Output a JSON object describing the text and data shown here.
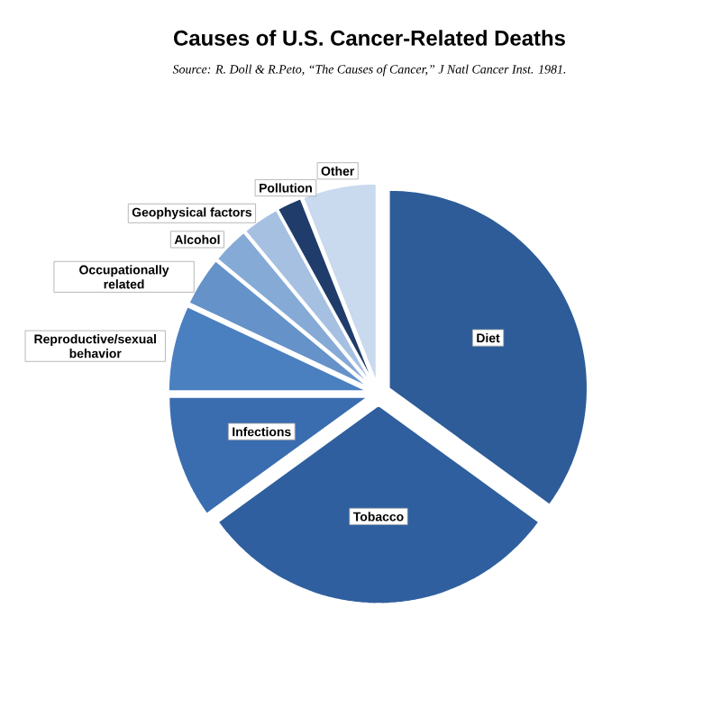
{
  "chart_data": {
    "type": "pie",
    "title": "Causes of U.S. Cancer-Related Deaths",
    "annotations": [
      "Source: R. Doll & R.Peto, “The Causes of Cancer,” J Natl Cancer Inst. 1981."
    ],
    "categories": [
      "Diet",
      "Tobacco",
      "Infections",
      "Reproductive/sexual behavior",
      "Occupationally related",
      "Alcohol",
      "Geophysical factors",
      "Pollution",
      "Other"
    ],
    "values": [
      35,
      30,
      10,
      7,
      4,
      3,
      3,
      2,
      6
    ],
    "colors": [
      "#2d5c98",
      "#2f5f9e",
      "#3a6db0",
      "#4a7fc0",
      "#6592c9",
      "#86aad6",
      "#a6c0e2",
      "#1f3c6a",
      "#c9d9ee"
    ]
  }
}
